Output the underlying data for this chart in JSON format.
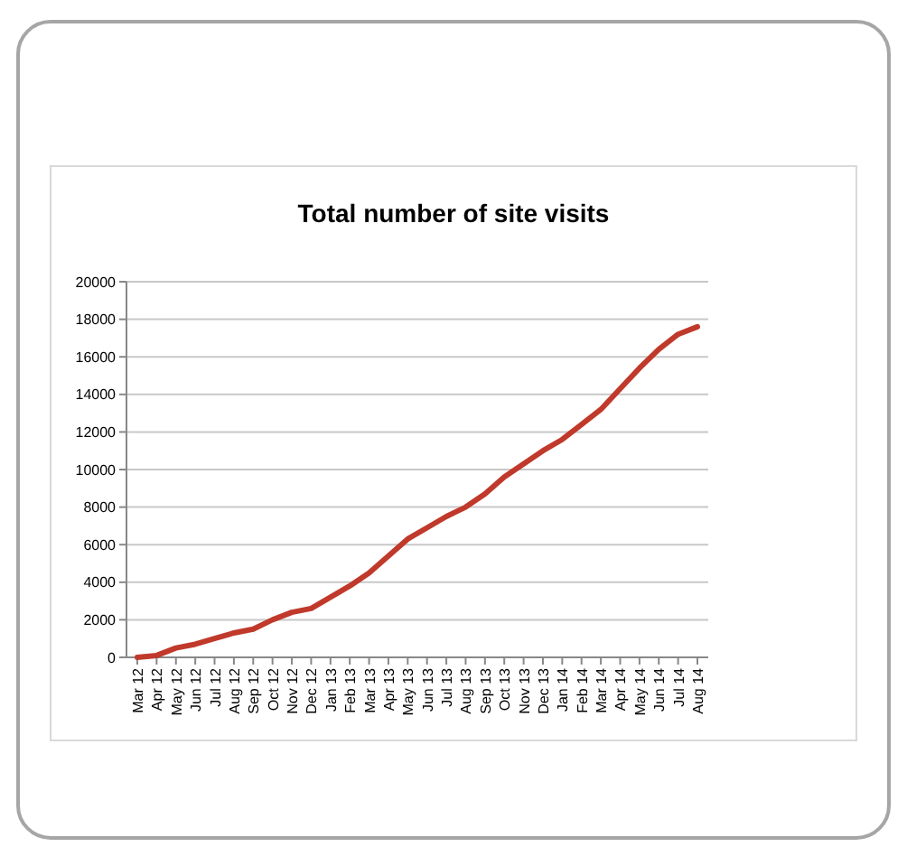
{
  "chart_data": {
    "type": "line",
    "title": "Total number of site visits",
    "categories": [
      "Mar 12",
      "Apr 12",
      "May 12",
      "Jun 12",
      "Jul 12",
      "Aug 12",
      "Sep 12",
      "Oct 12",
      "Nov 12",
      "Dec 12",
      "Jan 13",
      "Feb 13",
      "Mar 13",
      "Apr 13",
      "May 13",
      "Jun 13",
      "Jul 13",
      "Aug 13",
      "Sep 13",
      "Oct 13",
      "Nov 13",
      "Dec 13",
      "Jan 14",
      "Feb 14",
      "Mar 14",
      "Apr 14",
      "May 14",
      "Jun 14",
      "Jul 14",
      "Aug 14"
    ],
    "series": [
      {
        "color": "#c0392b",
        "values": [
          0,
          100,
          500,
          700,
          1000,
          1300,
          1500,
          2000,
          2400,
          2600,
          3200,
          3800,
          4500,
          5400,
          6300,
          6900,
          7500,
          8000,
          8700,
          9600,
          10300,
          11000,
          11600,
          12400,
          13200,
          14300,
          15400,
          16400,
          17200,
          17600
        ]
      }
    ],
    "ylim": [
      0,
      20000
    ],
    "yticks": [
      0,
      2000,
      4000,
      6000,
      8000,
      10000,
      12000,
      14000,
      16000,
      18000,
      20000
    ],
    "grid": "y",
    "marker": "none",
    "line_style": "solid"
  }
}
